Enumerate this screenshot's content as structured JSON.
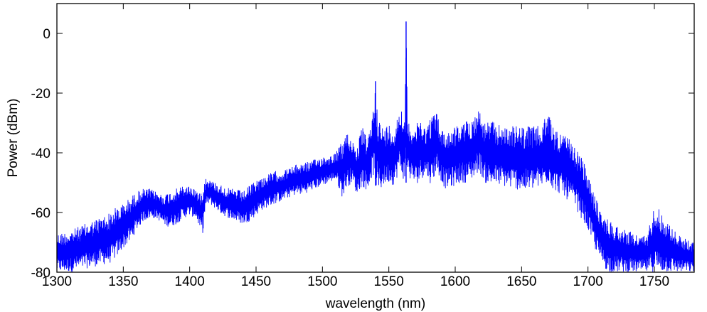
{
  "chart_data": {
    "type": "line",
    "title": "",
    "xlabel": "wavelength (nm)",
    "ylabel": "Power (dBm)",
    "xlim": [
      1300,
      1780
    ],
    "ylim": [
      -80,
      10
    ],
    "xticks": [
      1300,
      1350,
      1400,
      1450,
      1500,
      1550,
      1600,
      1650,
      1700,
      1750
    ],
    "yticks": [
      0,
      -20,
      -40,
      -60,
      -80
    ],
    "grid": false,
    "legend": "none",
    "series_color": "#0000ff",
    "series": [
      {
        "x": [
          1300,
          1310,
          1320,
          1330,
          1340,
          1345,
          1350,
          1355,
          1360,
          1365,
          1370,
          1375,
          1380,
          1385,
          1390,
          1395,
          1400,
          1405,
          1408,
          1410,
          1412,
          1415,
          1420,
          1425,
          1430,
          1435,
          1440,
          1445,
          1450,
          1455,
          1460,
          1465,
          1470,
          1475,
          1480,
          1485,
          1490,
          1495,
          1500,
          1505,
          1510,
          1515,
          1518,
          1522,
          1526,
          1530,
          1534,
          1538,
          1540,
          1542,
          1546,
          1550,
          1554,
          1558,
          1560,
          1562,
          1563,
          1564,
          1566,
          1570,
          1574,
          1578,
          1582,
          1586,
          1588,
          1592,
          1596,
          1600,
          1605,
          1610,
          1615,
          1618,
          1622,
          1626,
          1630,
          1635,
          1640,
          1645,
          1650,
          1655,
          1660,
          1665,
          1670,
          1675,
          1680,
          1685,
          1690,
          1695,
          1700,
          1705,
          1710,
          1715,
          1720,
          1725,
          1730,
          1735,
          1740,
          1745,
          1750,
          1755,
          1760,
          1765,
          1770,
          1775,
          1780
        ],
        "y_high": [
          -67,
          -66,
          -64,
          -62,
          -60,
          -58,
          -57,
          -55,
          -53,
          -52,
          -52,
          -53,
          -54,
          -53,
          -52,
          -51,
          -51,
          -52,
          -54,
          -50,
          -48,
          -49,
          -50,
          -51,
          -52,
          -52,
          -53,
          -51,
          -49,
          -48,
          -47,
          -46,
          -46,
          -45,
          -44,
          -43,
          -43,
          -42,
          -41,
          -41,
          -40,
          -36,
          -33,
          -35,
          -38,
          -31,
          -36,
          -26,
          -16,
          -28,
          -32,
          -30,
          -32,
          -25,
          -24,
          -30,
          4,
          -29,
          -30,
          -31,
          -28,
          -32,
          -27,
          -26,
          -30,
          -33,
          -32,
          -31,
          -30,
          -29,
          -27,
          -25,
          -30,
          -29,
          -30,
          -31,
          -31,
          -31,
          -31,
          -31,
          -31,
          -31,
          -26,
          -32,
          -33,
          -35,
          -38,
          -41,
          -47,
          -54,
          -60,
          -62,
          -64,
          -65,
          -66,
          -67,
          -68,
          -67,
          -56,
          -60,
          -63,
          -66,
          -68,
          -69,
          -70
        ],
        "y_low": [
          -80,
          -80,
          -79,
          -78,
          -77,
          -75,
          -72,
          -70,
          -66,
          -63,
          -62,
          -62,
          -64,
          -65,
          -64,
          -62,
          -61,
          -62,
          -66,
          -67,
          -58,
          -57,
          -59,
          -61,
          -62,
          -63,
          -64,
          -63,
          -61,
          -59,
          -58,
          -57,
          -56,
          -55,
          -54,
          -54,
          -53,
          -52,
          -51,
          -50,
          -49,
          -55,
          -52,
          -50,
          -54,
          -51,
          -53,
          -47,
          -51,
          -54,
          -51,
          -50,
          -51,
          -46,
          -48,
          -50,
          -50,
          -46,
          -49,
          -51,
          -49,
          -47,
          -51,
          -46,
          -48,
          -52,
          -52,
          -51,
          -50,
          -50,
          -48,
          -46,
          -50,
          -51,
          -51,
          -51,
          -52,
          -52,
          -53,
          -53,
          -52,
          -52,
          -50,
          -53,
          -54,
          -56,
          -58,
          -62,
          -66,
          -72,
          -77,
          -80,
          -80,
          -80,
          -80,
          -80,
          -80,
          -80,
          -80,
          -80,
          -80,
          -80,
          -80,
          -80,
          -80
        ]
      }
    ]
  }
}
